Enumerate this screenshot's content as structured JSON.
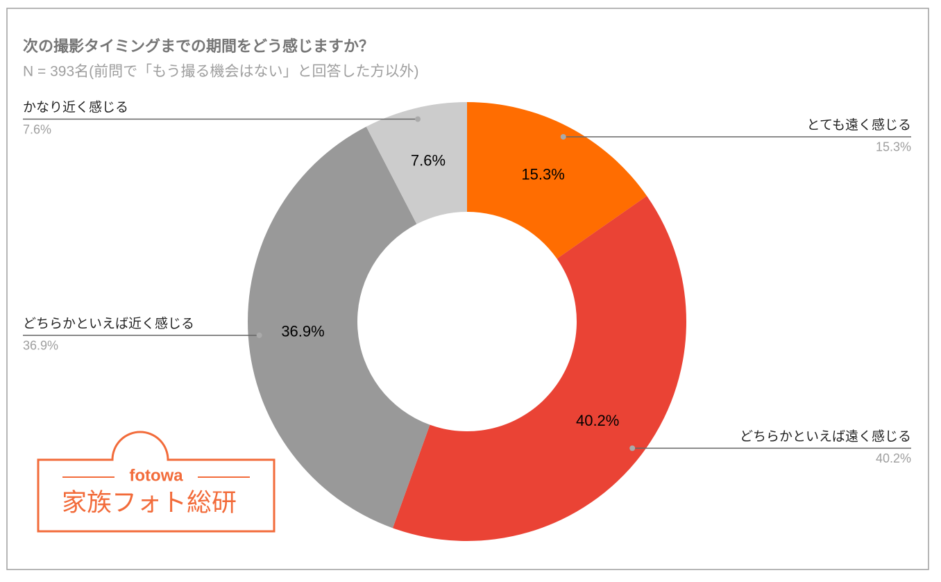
{
  "chart_data": {
    "type": "donut",
    "title": "次の撮影タイミングまでの期間をどう感じますか？",
    "subtitle": "N = 393名(前問で「もう撮る機会はない」と回答した方以外)",
    "categories": [
      "とても遠く感じる",
      "どちらかといえば遠く感じる",
      "どちらかといえば近く感じる",
      "かなり近く感じる"
    ],
    "values": [
      15.3,
      40.2,
      36.9,
      7.6
    ],
    "value_labels": [
      "15.3%",
      "40.2%",
      "36.9%",
      "7.6%"
    ],
    "colors": [
      "#ff6d01",
      "#ea4335",
      "#999999",
      "#cccccc"
    ]
  },
  "logo": {
    "brand": "fotowa",
    "name": "家族フォト総研"
  }
}
